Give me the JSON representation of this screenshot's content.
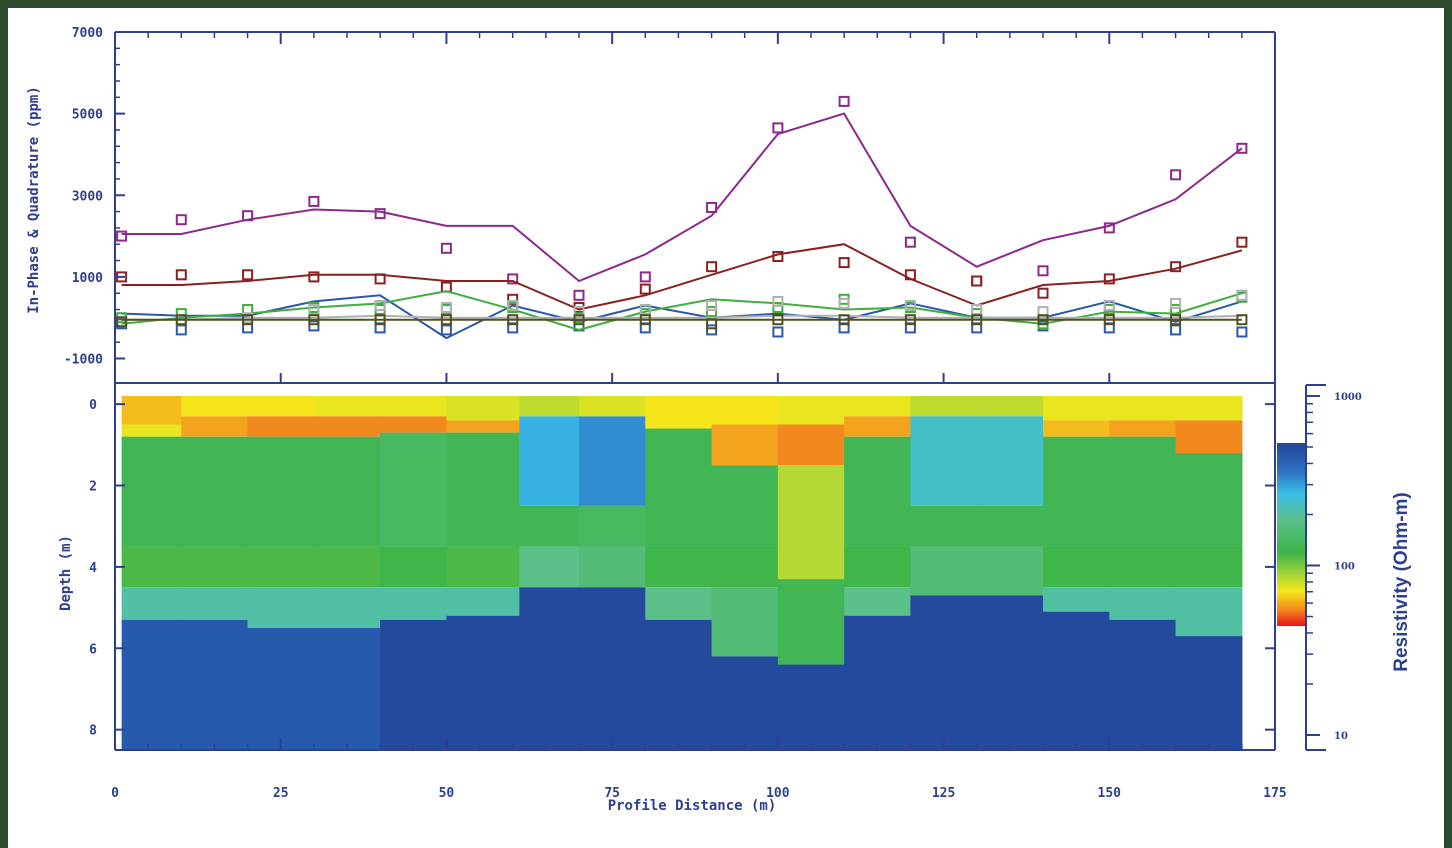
{
  "chart_data": [
    {
      "type": "line",
      "panel": "em-profile",
      "ylabel": "In-Phase & Quadrature (ppm)",
      "ylim": [
        -1600,
        7000
      ],
      "yticks": [
        7000,
        5000,
        3000,
        1000,
        -1000
      ],
      "xlim": [
        0,
        175
      ],
      "series": [
        {
          "color": "#8b2a8b",
          "x": [
            1,
            10,
            20,
            30,
            40,
            50,
            60,
            70,
            80,
            90,
            100,
            110,
            120,
            130,
            140,
            150,
            160,
            170
          ],
          "calculated": [
            2050,
            2050,
            2400,
            2650,
            2600,
            2250,
            2250,
            900,
            1550,
            2500,
            4500,
            5000,
            2250,
            1250,
            1900,
            2250,
            2900,
            4150
          ],
          "observed": [
            2000,
            2400,
            2500,
            2850,
            2550,
            1700,
            950,
            550,
            1000,
            2700,
            4650,
            5300,
            1850,
            900,
            1150,
            2200,
            3500,
            4150
          ]
        },
        {
          "color": "#8b2020",
          "x": [
            1,
            10,
            20,
            30,
            40,
            50,
            60,
            70,
            80,
            90,
            100,
            110,
            120,
            130,
            140,
            150,
            160,
            170
          ],
          "calculated": [
            800,
            800,
            900,
            1050,
            1050,
            900,
            900,
            200,
            550,
            1050,
            1550,
            1800,
            950,
            300,
            800,
            900,
            1200,
            1650
          ],
          "observed": [
            1000,
            1050,
            1050,
            1000,
            950,
            750,
            450,
            250,
            700,
            1250,
            1500,
            1350,
            1050,
            900,
            600,
            950,
            1250,
            1850
          ]
        },
        {
          "color": "#2b58a8",
          "x": [
            1,
            10,
            20,
            30,
            40,
            50,
            60,
            70,
            80,
            90,
            100,
            110,
            120,
            130,
            140,
            150,
            160,
            170
          ],
          "calculated": [
            100,
            50,
            50,
            400,
            550,
            -500,
            300,
            -100,
            300,
            0,
            100,
            -50,
            350,
            0,
            0,
            400,
            -100,
            400
          ],
          "observed": [
            -150,
            -300,
            -250,
            -200,
            -250,
            -300,
            -250,
            -200,
            -250,
            -300,
            -350,
            -250,
            -250,
            -250,
            -200,
            -250,
            -300,
            -350
          ]
        },
        {
          "color": "#3fae3f",
          "x": [
            1,
            10,
            20,
            30,
            40,
            50,
            60,
            70,
            80,
            90,
            100,
            110,
            120,
            130,
            140,
            150,
            160,
            170
          ],
          "calculated": [
            -150,
            0,
            100,
            250,
            350,
            650,
            200,
            -300,
            150,
            450,
            350,
            200,
            250,
            0,
            -150,
            150,
            100,
            600
          ],
          "observed": [
            0,
            100,
            200,
            250,
            200,
            200,
            250,
            0,
            100,
            150,
            250,
            450,
            250,
            100,
            -150,
            200,
            200,
            500
          ]
        },
        {
          "color": "#b0b0b0",
          "x": [
            1,
            10,
            20,
            30,
            40,
            50,
            60,
            70,
            80,
            90,
            100,
            110,
            120,
            130,
            140,
            150,
            160,
            170
          ],
          "calculated": [
            -50,
            -50,
            0,
            0,
            50,
            0,
            0,
            0,
            0,
            0,
            50,
            50,
            0,
            0,
            0,
            0,
            0,
            50
          ],
          "observed": [
            -100,
            -50,
            0,
            200,
            300,
            250,
            300,
            150,
            200,
            300,
            400,
            350,
            300,
            200,
            150,
            300,
            350,
            550
          ]
        },
        {
          "color": "#505020",
          "x": [
            1,
            10,
            20,
            30,
            40,
            50,
            60,
            70,
            80,
            90,
            100,
            110,
            120,
            130,
            140,
            150,
            160,
            170
          ],
          "calculated": [
            -50,
            -50,
            -50,
            -50,
            -50,
            -50,
            -50,
            -50,
            -50,
            -50,
            -50,
            -50,
            -50,
            -50,
            -50,
            -50,
            -50,
            -50
          ],
          "observed": [
            -100,
            -50,
            -50,
            -50,
            -50,
            -50,
            -50,
            -50,
            -50,
            -150,
            -50,
            -50,
            -50,
            -50,
            -50,
            -50,
            -50,
            -50
          ]
        }
      ]
    },
    {
      "type": "heatmap",
      "panel": "resistivity-section",
      "ylabel": "Depth (m)",
      "xlabel": "Profile Distance (m)",
      "xlim": [
        0,
        175
      ],
      "ylim": [
        8.5,
        -0.2
      ],
      "xticks": [
        0,
        25,
        50,
        75,
        100,
        125,
        150,
        175
      ],
      "yticks": [
        0,
        2,
        4,
        6,
        8
      ],
      "colorbar": {
        "title": "Resistivity (Ohm-m)",
        "tick_labels": [
          "1000",
          "100",
          "10"
        ],
        "scale": "log"
      },
      "columns": [
        {
          "x0": 1,
          "x1": 10,
          "layers": [
            [
              0.5,
              60
            ],
            [
              0.8,
              75
            ],
            [
              3.5,
              150
            ],
            [
              4.5,
              135
            ],
            [
              5.3,
              220
            ],
            [
              8.4,
              500
            ]
          ]
        },
        {
          "x0": 10,
          "x1": 20,
          "layers": [
            [
              0.3,
              70
            ],
            [
              0.8,
              55
            ],
            [
              3.5,
              150
            ],
            [
              4.5,
              135
            ],
            [
              5.3,
              220
            ],
            [
              8.4,
              500
            ]
          ]
        },
        {
          "x0": 20,
          "x1": 30,
          "layers": [
            [
              0.3,
              70
            ],
            [
              0.8,
              50
            ],
            [
              3.5,
              150
            ],
            [
              4.5,
              135
            ],
            [
              5.5,
              220
            ],
            [
              8.4,
              500
            ]
          ]
        },
        {
          "x0": 30,
          "x1": 40,
          "layers": [
            [
              0.3,
              75
            ],
            [
              0.8,
              50
            ],
            [
              3.5,
              150
            ],
            [
              4.5,
              135
            ],
            [
              5.5,
              220
            ],
            [
              8.4,
              500
            ]
          ]
        },
        {
          "x0": 40,
          "x1": 50,
          "layers": [
            [
              0.3,
              75
            ],
            [
              0.7,
              50
            ],
            [
              3.5,
              160
            ],
            [
              4.5,
              140
            ],
            [
              5.3,
              220
            ],
            [
              8.4,
              600
            ]
          ]
        },
        {
          "x0": 50,
          "x1": 61,
          "layers": [
            [
              0.4,
              80
            ],
            [
              0.7,
              55
            ],
            [
              3.5,
              150
            ],
            [
              4.5,
              135
            ],
            [
              5.2,
              220
            ],
            [
              8.4,
              600
            ]
          ]
        },
        {
          "x0": 61,
          "x1": 70,
          "layers": [
            [
              0.3,
              90
            ],
            [
              2.5,
              300
            ],
            [
              3.5,
              150
            ],
            [
              4.5,
              200
            ],
            [
              8.4,
              600
            ]
          ]
        },
        {
          "x0": 70,
          "x1": 80,
          "layers": [
            [
              0.3,
              80
            ],
            [
              2.5,
              350
            ],
            [
              3.5,
              160
            ],
            [
              4.5,
              180
            ],
            [
              8.4,
              600
            ]
          ]
        },
        {
          "x0": 80,
          "x1": 90,
          "layers": [
            [
              0.6,
              70
            ],
            [
              3.5,
              150
            ],
            [
              4.5,
              140
            ],
            [
              5.3,
              200
            ],
            [
              8.4,
              600
            ]
          ]
        },
        {
          "x0": 90,
          "x1": 100,
          "layers": [
            [
              0.5,
              70
            ],
            [
              1.5,
              55
            ],
            [
              3.5,
              150
            ],
            [
              4.5,
              140
            ],
            [
              6.2,
              180
            ],
            [
              8.4,
              600
            ]
          ]
        },
        {
          "x0": 100,
          "x1": 110,
          "layers": [
            [
              0.5,
              75
            ],
            [
              1.5,
              50
            ],
            [
              4.3,
              95
            ],
            [
              6.4,
              150
            ],
            [
              8.4,
              600
            ]
          ]
        },
        {
          "x0": 110,
          "x1": 120,
          "layers": [
            [
              0.3,
              75
            ],
            [
              0.8,
              55
            ],
            [
              3.5,
              150
            ],
            [
              4.5,
              140
            ],
            [
              5.2,
              200
            ],
            [
              8.4,
              600
            ]
          ]
        },
        {
          "x0": 120,
          "x1": 130,
          "layers": [
            [
              0.3,
              90
            ],
            [
              2.5,
              250
            ],
            [
              3.5,
              150
            ],
            [
              4.7,
              180
            ],
            [
              8.4,
              600
            ]
          ]
        },
        {
          "x0": 130,
          "x1": 140,
          "layers": [
            [
              0.3,
              90
            ],
            [
              2.5,
              250
            ],
            [
              3.5,
              150
            ],
            [
              4.7,
              180
            ],
            [
              8.4,
              600
            ]
          ]
        },
        {
          "x0": 140,
          "x1": 150,
          "layers": [
            [
              0.4,
              75
            ],
            [
              0.8,
              60
            ],
            [
              3.5,
              150
            ],
            [
              4.5,
              140
            ],
            [
              5.1,
              220
            ],
            [
              8.4,
              600
            ]
          ]
        },
        {
          "x0": 150,
          "x1": 160,
          "layers": [
            [
              0.4,
              75
            ],
            [
              0.8,
              55
            ],
            [
              3.5,
              150
            ],
            [
              4.5,
              140
            ],
            [
              5.3,
              220
            ],
            [
              8.4,
              600
            ]
          ]
        },
        {
          "x0": 160,
          "x1": 170,
          "layers": [
            [
              0.4,
              75
            ],
            [
              1.2,
              50
            ],
            [
              3.5,
              150
            ],
            [
              4.5,
              140
            ],
            [
              5.7,
              220
            ],
            [
              8.4,
              600
            ]
          ]
        }
      ]
    }
  ]
}
